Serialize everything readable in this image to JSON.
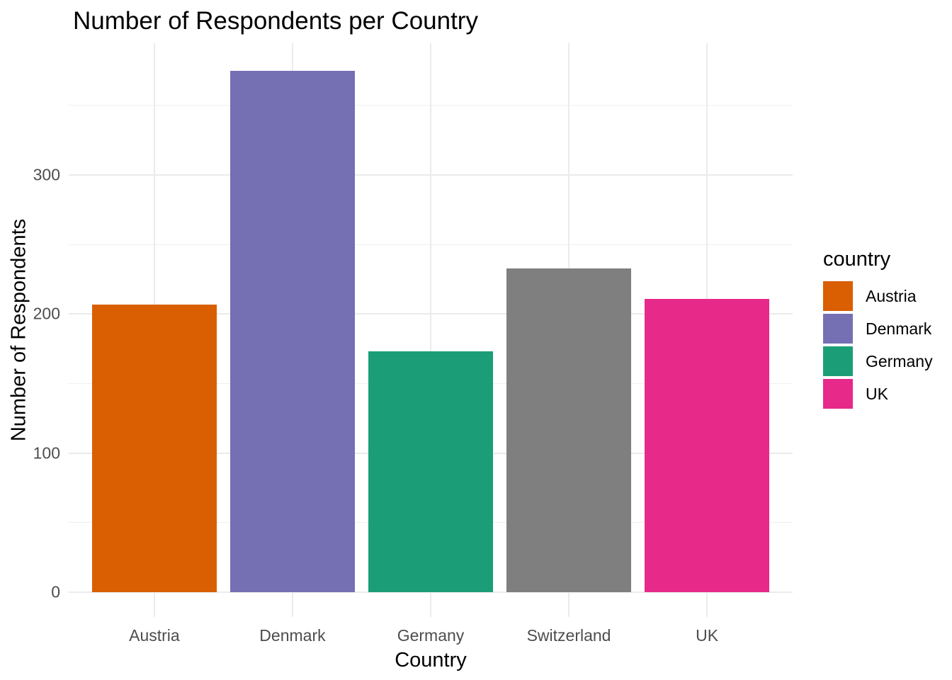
{
  "chart_data": {
    "type": "bar",
    "title": "Number of Respondents per Country",
    "xlabel": "Country",
    "ylabel": "Number of Respondents",
    "categories": [
      "Austria",
      "Denmark",
      "Germany",
      "Switzerland",
      "UK"
    ],
    "values": [
      207,
      375,
      173,
      233,
      211
    ],
    "bar_colors": [
      "#D95F02",
      "#7570B3",
      "#1B9E77",
      "#7F7F7F",
      "#E7298A"
    ],
    "y_ticks": [
      0,
      100,
      200,
      300
    ],
    "y_minor_ticks": [
      50,
      150,
      250,
      350
    ],
    "ylim": [
      -19,
      394
    ],
    "grid": true,
    "legend_position": "right"
  },
  "legend": {
    "title": "country",
    "items": [
      {
        "label": "Austria",
        "color": "#D95F02"
      },
      {
        "label": "Denmark",
        "color": "#7570B3"
      },
      {
        "label": "Germany",
        "color": "#1B9E77"
      },
      {
        "label": "UK",
        "color": "#E7298A"
      }
    ]
  },
  "colors": {
    "background": "#FFFFFF",
    "gridline_major": "#EBEBEB",
    "gridline_minor": "#EFEFEF",
    "tick_label": "#4D4D4D",
    "title_text": "#000000"
  }
}
